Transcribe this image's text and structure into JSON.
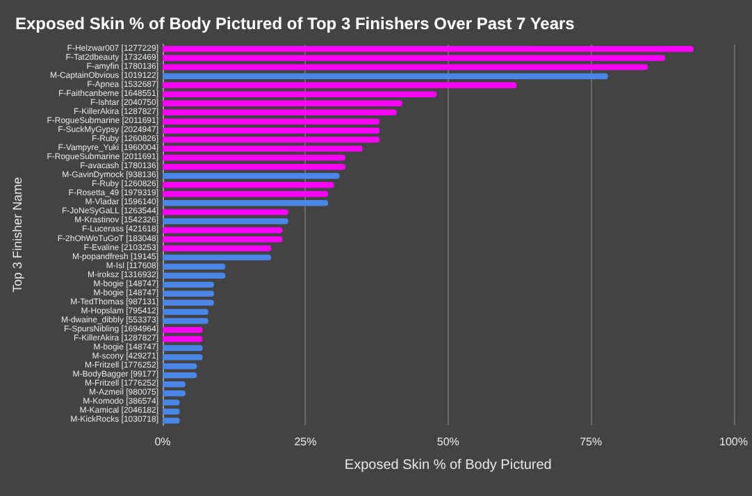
{
  "chart_data": {
    "type": "bar",
    "orientation": "horizontal",
    "title": "Exposed Skin % of Body Pictured of Top 3 Finishers Over Past 7 Years",
    "xlabel": "Exposed Skin % of Body Pictured",
    "ylabel": "Top 3 Finisher Name",
    "categories": [
      "F-Helzwar007 [1277229]",
      "F-Tat2dbeauty [1732469]",
      "F-amyfin [1780136]",
      "M-CaptainObvious [1019122]",
      "F-Apnea [1532687]",
      "F-Faithcanbeme [1648551]",
      "F-Ishtar [2040750]",
      "F-KillerAkira [1287827]",
      "F-RogueSubmarine [2011691]",
      "F-SuckMyGypsy [2024947]",
      "F-Ruby [1260826]",
      "F-Vampyre_Yuki [1960004]",
      "F-RogueSubmarine [2011691]",
      "F-avacash [1780136]",
      "M-GavinDymock [938136]",
      "F-Ruby [1260826]",
      "F-Rosetta_49 [1979319]",
      "M-Vladar [1596140]",
      "F-JoNeSyGaLL [1263544]",
      "M-Krastinov [1542326]",
      "F-Lucerass [421618]",
      "F-2hOhWoTuGoT [183048]",
      "F-Evaline [2103253]",
      "M-popandfresh [19145]",
      "M-Isl [117608]",
      "M-iroksz [1316932]",
      "M-bogie [148747]",
      "M-bogie [148747]",
      "M-TedThomas [987131]",
      "M-Hopslam [795412]",
      "M-dwaine_dibbly [553373]",
      "F-SpursNibling [1694964]",
      "F-KillerAkira [1287827]",
      "M-bogie [148747]",
      "M-scony [429271]",
      "M-Fritzell [1776252]",
      "M-BodyBagger [99177]",
      "M-Fritzell [1776252]",
      "M-Azmeil [980075]",
      "M-Komodo [386574]",
      "M-Kamical [2046182]",
      "M-KickRocks [1030718]"
    ],
    "values": [
      93,
      88,
      85,
      78,
      62,
      48,
      42,
      41,
      38,
      38,
      38,
      35,
      32,
      32,
      31,
      30,
      29,
      29,
      22,
      22,
      21,
      21,
      19,
      19,
      11,
      11,
      9,
      9,
      9,
      8,
      8,
      7,
      7,
      7,
      7,
      6,
      6,
      4,
      4,
      3,
      3,
      3
    ],
    "colors": [
      "#ff00ff",
      "#ff00ff",
      "#ff00ff",
      "#4a86e8",
      "#ff00ff",
      "#ff00ff",
      "#ff00ff",
      "#ff00ff",
      "#ff00ff",
      "#ff00ff",
      "#ff00ff",
      "#ff00ff",
      "#ff00ff",
      "#ff00ff",
      "#4a86e8",
      "#ff00ff",
      "#ff00ff",
      "#4a86e8",
      "#ff00ff",
      "#4a86e8",
      "#ff00ff",
      "#ff00ff",
      "#ff00ff",
      "#4a86e8",
      "#4a86e8",
      "#4a86e8",
      "#4a86e8",
      "#4a86e8",
      "#4a86e8",
      "#4a86e8",
      "#4a86e8",
      "#ff00ff",
      "#ff00ff",
      "#4a86e8",
      "#4a86e8",
      "#4a86e8",
      "#4a86e8",
      "#4a86e8",
      "#4a86e8",
      "#4a86e8",
      "#4a86e8",
      "#4a86e8"
    ],
    "xlim": [
      0,
      100
    ],
    "xticks": [
      {
        "value": 0,
        "label": "0%"
      },
      {
        "value": 25,
        "label": "25%"
      },
      {
        "value": 50,
        "label": "50%"
      },
      {
        "value": 75,
        "label": "75%"
      },
      {
        "value": 100,
        "label": "100%"
      }
    ],
    "grid": "x"
  }
}
